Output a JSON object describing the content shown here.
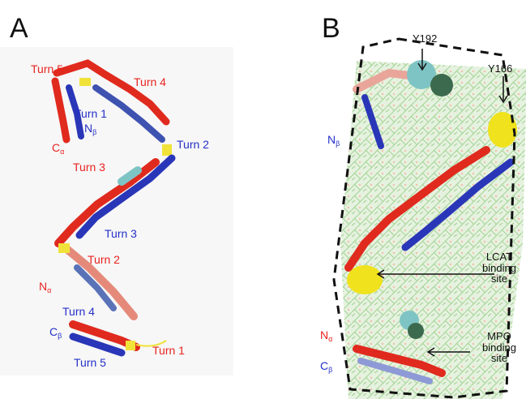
{
  "panels": {
    "a": {
      "letter": "A"
    },
    "b": {
      "letter": "B"
    }
  },
  "labels_a": {
    "turn5_red": "Turn 5",
    "turn4_red": "Turn 4",
    "turn1_blue": "Turn 1",
    "n_beta": "N",
    "n_beta_sub": "β",
    "c_alpha": "C",
    "c_alpha_sub": "α",
    "turn2_blue": "Turn 2",
    "turn3_red": "Turn 3",
    "turn3_blue": "Turn 3",
    "turn2_red": "Turn 2",
    "n_alpha": "N",
    "n_alpha_sub": "α",
    "turn4_blue": "Turn 4",
    "c_beta": "C",
    "c_beta_sub": "β",
    "turn5_blue": "Turn 5",
    "turn1_red": "Turn 1"
  },
  "labels_b": {
    "y192": "Y192",
    "y166": "Y166",
    "n_beta": "N",
    "n_beta_sub": "β",
    "lcat_line1": "LCAT",
    "lcat_line2": "binding",
    "lcat_line3": "site",
    "mpo_line1": "MPO",
    "mpo_line2": "binding",
    "mpo_line3": "site",
    "n_alpha": "N",
    "n_alpha_sub": "α",
    "c_beta": "C",
    "c_beta_sub": "β"
  },
  "colors": {
    "red_helix": "#e02a1e",
    "blue_helix": "#2a36b8",
    "turn_yellow": "#f1e23a",
    "lipid_green": "#9fd08f",
    "cyan_helix": "#7fc4c4"
  }
}
